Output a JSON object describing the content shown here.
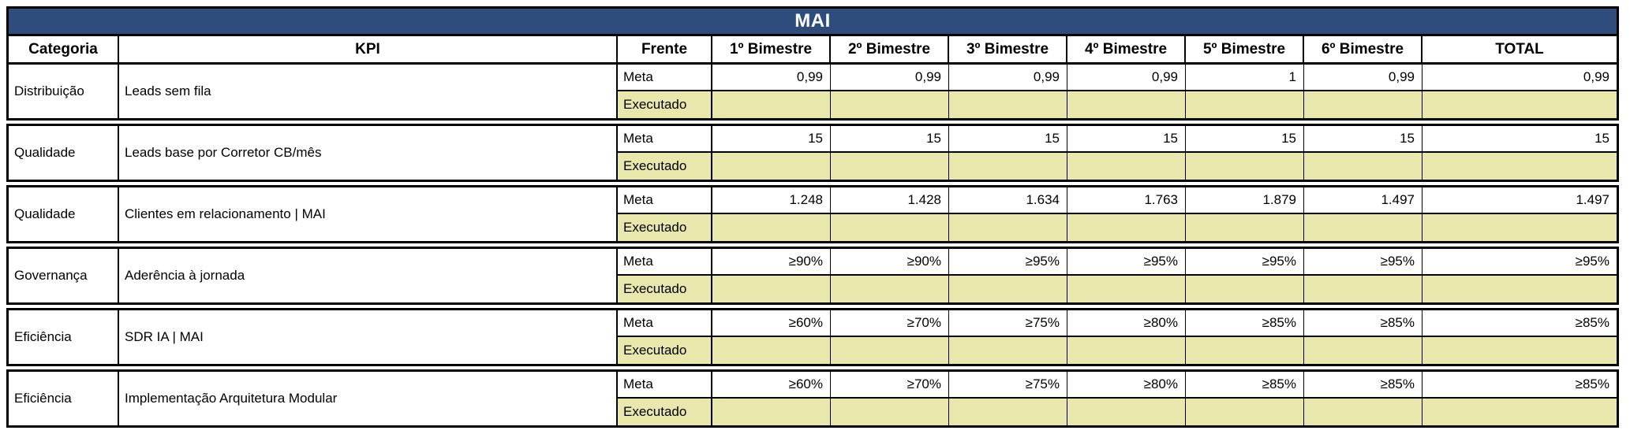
{
  "title": "MAI",
  "columns": [
    "Categoria",
    "KPI",
    "Frente",
    "1º Bimestre",
    "2º Bimestre",
    "3º Bimestre",
    "4º Bimestre",
    "5º Bimestre",
    "6º Bimestre",
    "TOTAL"
  ],
  "row_labels": {
    "meta": "Meta",
    "executado": "Executado"
  },
  "colors": {
    "title_bg": "#2F4D7C",
    "title_text": "#FFFFFF",
    "executado_bg": "#E8E8AC",
    "border": "#000000"
  },
  "blocks": [
    {
      "categoria": "Distribuição",
      "kpi": "Leads sem fila",
      "meta": [
        "0,99",
        "0,99",
        "0,99",
        "0,99",
        "1",
        "0,99",
        "0,99"
      ],
      "executado": [
        "",
        "",
        "",
        "",
        "",
        "",
        ""
      ]
    },
    {
      "categoria": "Qualidade",
      "kpi": "Leads base por Corretor CB/mês",
      "meta": [
        "15",
        "15",
        "15",
        "15",
        "15",
        "15",
        "15"
      ],
      "executado": [
        "",
        "",
        "",
        "",
        "",
        "",
        ""
      ]
    },
    {
      "categoria": "Qualidade",
      "kpi": "Clientes em relacionamento | MAI",
      "meta": [
        "1.248",
        "1.428",
        "1.634",
        "1.763",
        "1.879",
        "1.497",
        "1.497"
      ],
      "executado": [
        "",
        "",
        "",
        "",
        "",
        "",
        ""
      ]
    },
    {
      "categoria": "Governança",
      "kpi": "Aderência à jornada",
      "meta": [
        "≥90%",
        "≥90%",
        "≥95%",
        "≥95%",
        "≥95%",
        "≥95%",
        "≥95%"
      ],
      "executado": [
        "",
        "",
        "",
        "",
        "",
        "",
        ""
      ]
    },
    {
      "categoria": "Eficiência",
      "kpi": "SDR IA | MAI",
      "meta": [
        "≥60%",
        "≥70%",
        "≥75%",
        "≥80%",
        "≥85%",
        "≥85%",
        "≥85%"
      ],
      "executado": [
        "",
        "",
        "",
        "",
        "",
        "",
        ""
      ]
    },
    {
      "categoria": "Eficiência",
      "kpi": "Implementação Arquitetura Modular",
      "meta": [
        "≥60%",
        "≥70%",
        "≥75%",
        "≥80%",
        "≥85%",
        "≥85%",
        "≥85%"
      ],
      "executado": [
        "",
        "",
        "",
        "",
        "",
        "",
        ""
      ]
    }
  ]
}
